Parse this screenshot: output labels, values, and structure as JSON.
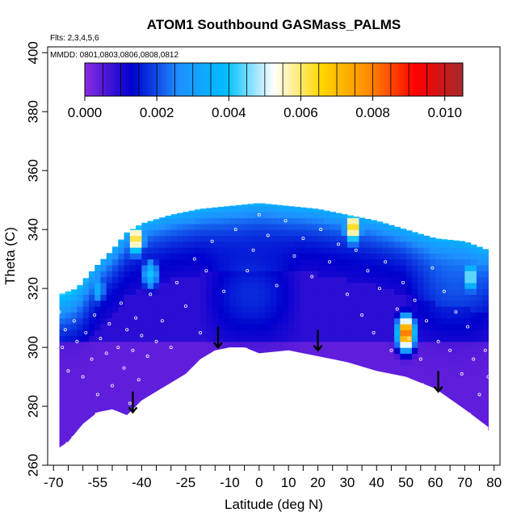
{
  "chart_data": {
    "type": "heatmap",
    "title": "ATOM1 Southbound GASMass_PALMS",
    "flights_label": "Flts: 2,3,4,5,6",
    "dates_label": "MMDD: 0801,0803,0806,0808,0812",
    "xlabel": "Latitude (deg N)",
    "ylabel": "Theta (C)",
    "xlim": [
      -72,
      82
    ],
    "ylim": [
      260,
      402
    ],
    "x_ticks": [
      -70,
      -55,
      -40,
      -25,
      -10,
      0,
      10,
      20,
      30,
      40,
      50,
      60,
      70,
      80
    ],
    "x_tick_labels": [
      "-70",
      "-55",
      "-40",
      "-25",
      "-10",
      "0",
      "10",
      "20",
      "30",
      "40",
      "50",
      "60",
      "70",
      "80"
    ],
    "x_minor_ticks": [
      -65,
      -60,
      -50,
      -45,
      -35,
      -30,
      -20,
      -15,
      -5,
      5,
      15,
      25,
      35,
      45,
      55,
      65,
      75
    ],
    "y_ticks": [
      260,
      280,
      300,
      320,
      340,
      360,
      380,
      400
    ],
    "y_tick_labels": [
      "260",
      "280",
      "300",
      "320",
      "340",
      "360",
      "380",
      "400"
    ],
    "colorbar": {
      "range": [
        0,
        0.0105
      ],
      "tick_values": [
        0,
        0.002,
        0.004,
        0.006,
        0.008,
        0.01
      ],
      "tick_labels": [
        "0.000",
        "0.002",
        "0.004",
        "0.006",
        "0.008",
        "0.010"
      ],
      "colors": [
        "#8a2be2",
        "#0000cd",
        "#1e90ff",
        "#00bfff",
        "#ffffff",
        "#ffd700",
        "#ff8c00",
        "#ff0000",
        "#a52a2a"
      ]
    },
    "upper_boundary": [
      [
        -68,
        318
      ],
      [
        -62,
        320
      ],
      [
        -56,
        327
      ],
      [
        -50,
        333
      ],
      [
        -45,
        339
      ],
      [
        -40,
        342
      ],
      [
        -30,
        345
      ],
      [
        -20,
        347
      ],
      [
        -10,
        348
      ],
      [
        0,
        349
      ],
      [
        10,
        348
      ],
      [
        20,
        347
      ],
      [
        30,
        345
      ],
      [
        40,
        343
      ],
      [
        50,
        340
      ],
      [
        60,
        337
      ],
      [
        70,
        336
      ],
      [
        78,
        333
      ]
    ],
    "lower_boundary": [
      [
        -68,
        266
      ],
      [
        -65,
        268
      ],
      [
        -60,
        274
      ],
      [
        -55,
        278
      ],
      [
        -50,
        279
      ],
      [
        -45,
        277
      ],
      [
        -40,
        282
      ],
      [
        -35,
        285
      ],
      [
        -30,
        288
      ],
      [
        -25,
        291
      ],
      [
        -20,
        296
      ],
      [
        -15,
        299
      ],
      [
        -10,
        300
      ],
      [
        -5,
        300
      ],
      [
        0,
        298
      ],
      [
        10,
        299
      ],
      [
        20,
        297
      ],
      [
        30,
        295
      ],
      [
        40,
        292
      ],
      [
        50,
        290
      ],
      [
        60,
        286
      ],
      [
        70,
        279
      ],
      [
        78,
        273
      ]
    ],
    "hotspots": [
      {
        "lat": -42,
        "theta": 337,
        "value": 0.0068
      },
      {
        "lat": -37,
        "theta": 325,
        "value": 0.004
      },
      {
        "lat": 32,
        "theta": 341,
        "value": 0.007
      },
      {
        "lat": 50,
        "theta": 305,
        "value": 0.0088
      },
      {
        "lat": 72,
        "theta": 324,
        "value": 0.005
      },
      {
        "lat": -55,
        "theta": 320,
        "value": 0.0035
      }
    ],
    "arrows": [
      [
        -43,
        282
      ],
      [
        -14,
        304
      ],
      [
        20,
        303
      ],
      [
        61,
        289
      ]
    ],
    "sample_points": [
      [
        -68,
        312
      ],
      [
        -67,
        300
      ],
      [
        -66,
        306
      ],
      [
        -65,
        292
      ],
      [
        -63,
        309
      ],
      [
        -62,
        302
      ],
      [
        -60,
        290
      ],
      [
        -59,
        305
      ],
      [
        -57,
        296
      ],
      [
        -56,
        311
      ],
      [
        -55,
        284
      ],
      [
        -54,
        303
      ],
      [
        -52,
        298
      ],
      [
        -51,
        308
      ],
      [
        -50,
        287
      ],
      [
        -48,
        300
      ],
      [
        -47,
        315
      ],
      [
        -46,
        293
      ],
      [
        -45,
        306
      ],
      [
        -44,
        281
      ],
      [
        -43,
        299
      ],
      [
        -42,
        310
      ],
      [
        -41,
        289
      ],
      [
        -40,
        304
      ],
      [
        -38,
        297
      ],
      [
        -37,
        318
      ],
      [
        -35,
        302
      ],
      [
        -33,
        309
      ],
      [
        -30,
        300
      ],
      [
        -28,
        322
      ],
      [
        -25,
        314
      ],
      [
        -22,
        330
      ],
      [
        -20,
        305
      ],
      [
        -18,
        326
      ],
      [
        -16,
        336
      ],
      [
        -12,
        319
      ],
      [
        -8,
        340
      ],
      [
        -4,
        326
      ],
      [
        -2,
        333
      ],
      [
        0,
        345
      ],
      [
        3,
        338
      ],
      [
        6,
        321
      ],
      [
        9,
        343
      ],
      [
        12,
        331
      ],
      [
        15,
        337
      ],
      [
        18,
        324
      ],
      [
        21,
        340
      ],
      [
        24,
        329
      ],
      [
        27,
        335
      ],
      [
        30,
        318
      ],
      [
        33,
        333
      ],
      [
        35,
        311
      ],
      [
        37,
        326
      ],
      [
        39,
        305
      ],
      [
        41,
        320
      ],
      [
        43,
        329
      ],
      [
        45,
        299
      ],
      [
        47,
        313
      ],
      [
        49,
        322
      ],
      [
        51,
        303
      ],
      [
        53,
        316
      ],
      [
        55,
        296
      ],
      [
        57,
        309
      ],
      [
        59,
        327
      ],
      [
        61,
        302
      ],
      [
        63,
        319
      ],
      [
        65,
        299
      ],
      [
        67,
        312
      ],
      [
        69,
        291
      ],
      [
        71,
        307
      ],
      [
        73,
        296
      ],
      [
        75,
        284
      ],
      [
        77,
        299
      ],
      [
        78,
        290
      ]
    ]
  }
}
